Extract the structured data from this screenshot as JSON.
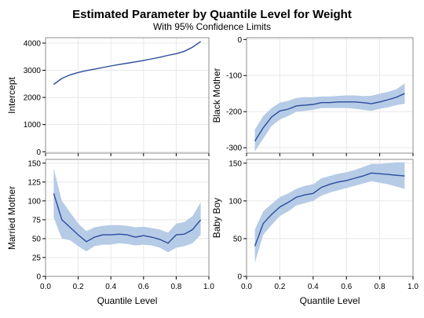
{
  "title": "Estimated Parameter by Quantile Level for Weight",
  "subtitle": "With 95% Confidence Limits",
  "chart_data": [
    {
      "type": "line",
      "ylabel": "Intercept",
      "xlabel": "",
      "xlim": [
        0,
        1
      ],
      "ylim": [
        -50,
        4200
      ],
      "xticks": [
        "0.0",
        "0.2",
        "0.4",
        "0.6",
        "0.8",
        "1.0"
      ],
      "yticks": [
        0,
        1000,
        2000,
        3000,
        4000
      ],
      "show_x_tick_labels": false,
      "x": [
        0.05,
        0.1,
        0.15,
        0.2,
        0.25,
        0.3,
        0.35,
        0.4,
        0.45,
        0.5,
        0.55,
        0.6,
        0.65,
        0.7,
        0.75,
        0.8,
        0.85,
        0.9,
        0.95
      ],
      "estimate": [
        2480,
        2700,
        2830,
        2920,
        2990,
        3040,
        3100,
        3160,
        3210,
        3260,
        3310,
        3360,
        3420,
        3480,
        3550,
        3610,
        3700,
        3850,
        4060
      ],
      "lower": [
        2470,
        2690,
        2820,
        2910,
        2980,
        3030,
        3090,
        3150,
        3200,
        3250,
        3300,
        3350,
        3410,
        3470,
        3540,
        3600,
        3690,
        3840,
        4050
      ],
      "upper": [
        2490,
        2710,
        2840,
        2930,
        3000,
        3050,
        3110,
        3170,
        3220,
        3270,
        3320,
        3370,
        3430,
        3490,
        3560,
        3620,
        3710,
        3860,
        4070
      ]
    },
    {
      "type": "line",
      "ylabel": "Black Mother",
      "xlabel": "",
      "xlim": [
        0,
        1
      ],
      "ylim": [
        -315,
        5
      ],
      "xticks": [
        "0.0",
        "0.2",
        "0.4",
        "0.6",
        "0.8",
        "1.0"
      ],
      "yticks": [
        0,
        -100,
        -200,
        -300
      ],
      "show_x_tick_labels": false,
      "x": [
        0.05,
        0.1,
        0.15,
        0.2,
        0.25,
        0.3,
        0.35,
        0.4,
        0.45,
        0.5,
        0.55,
        0.6,
        0.65,
        0.7,
        0.75,
        0.8,
        0.85,
        0.9,
        0.95
      ],
      "estimate": [
        -282,
        -245,
        -215,
        -198,
        -193,
        -184,
        -182,
        -180,
        -175,
        -175,
        -173,
        -173,
        -173,
        -175,
        -178,
        -173,
        -167,
        -160,
        -150
      ],
      "lower": [
        -310,
        -275,
        -240,
        -222,
        -212,
        -200,
        -198,
        -195,
        -190,
        -190,
        -190,
        -190,
        -192,
        -195,
        -198,
        -192,
        -188,
        -182,
        -178
      ],
      "upper": [
        -250,
        -212,
        -190,
        -175,
        -170,
        -162,
        -160,
        -160,
        -158,
        -158,
        -156,
        -155,
        -155,
        -157,
        -156,
        -150,
        -145,
        -138,
        -122
      ]
    },
    {
      "type": "line",
      "ylabel": "Married Mother",
      "xlabel": "Quantile Level",
      "xlim": [
        0,
        1
      ],
      "ylim": [
        0,
        155
      ],
      "xticks": [
        "0.0",
        "0.2",
        "0.4",
        "0.6",
        "0.8",
        "1.0"
      ],
      "yticks": [
        0,
        25,
        50,
        75,
        100,
        125,
        150
      ],
      "show_x_tick_labels": true,
      "x": [
        0.05,
        0.1,
        0.15,
        0.2,
        0.25,
        0.3,
        0.35,
        0.4,
        0.45,
        0.5,
        0.55,
        0.6,
        0.65,
        0.7,
        0.75,
        0.8,
        0.85,
        0.9,
        0.95
      ],
      "estimate": [
        110,
        75,
        65,
        55,
        46,
        52,
        55,
        55,
        56,
        55,
        52,
        54,
        52,
        49,
        44,
        55,
        56,
        62,
        75
      ],
      "lower": [
        78,
        50,
        48,
        40,
        33,
        40,
        42,
        42,
        44,
        43,
        41,
        42,
        41,
        38,
        32,
        38,
        40,
        44,
        55
      ],
      "upper": [
        143,
        100,
        85,
        70,
        60,
        65,
        67,
        68,
        68,
        67,
        65,
        66,
        64,
        62,
        58,
        70,
        72,
        80,
        98
      ]
    },
    {
      "type": "line",
      "ylabel": "Baby Boy",
      "xlabel": "Quantile Level",
      "xlim": [
        0,
        1
      ],
      "ylim": [
        0,
        155
      ],
      "xticks": [
        "0.0",
        "0.2",
        "0.4",
        "0.6",
        "0.8",
        "1.0"
      ],
      "yticks": [
        0,
        50,
        100,
        150
      ],
      "show_x_tick_labels": true,
      "x": [
        0.05,
        0.1,
        0.15,
        0.2,
        0.25,
        0.3,
        0.35,
        0.4,
        0.45,
        0.5,
        0.55,
        0.6,
        0.65,
        0.7,
        0.75,
        0.8,
        0.85,
        0.9,
        0.95
      ],
      "estimate": [
        40,
        70,
        82,
        92,
        98,
        105,
        108,
        110,
        118,
        122,
        125,
        127,
        130,
        133,
        137,
        136,
        135,
        134,
        133
      ],
      "lower": [
        18,
        55,
        68,
        80,
        86,
        94,
        97,
        100,
        107,
        111,
        114,
        117,
        120,
        123,
        126,
        124,
        122,
        119,
        116
      ],
      "upper": [
        62,
        86,
        96,
        105,
        110,
        116,
        120,
        122,
        130,
        133,
        136,
        138,
        141,
        145,
        149,
        149,
        150,
        151,
        151
      ]
    }
  ],
  "colors": {
    "estimate_line": "#2a4d9a",
    "band_fill": "#b6cbe6",
    "frame": "#8c8c8c",
    "grid": "#e8e8e8"
  }
}
